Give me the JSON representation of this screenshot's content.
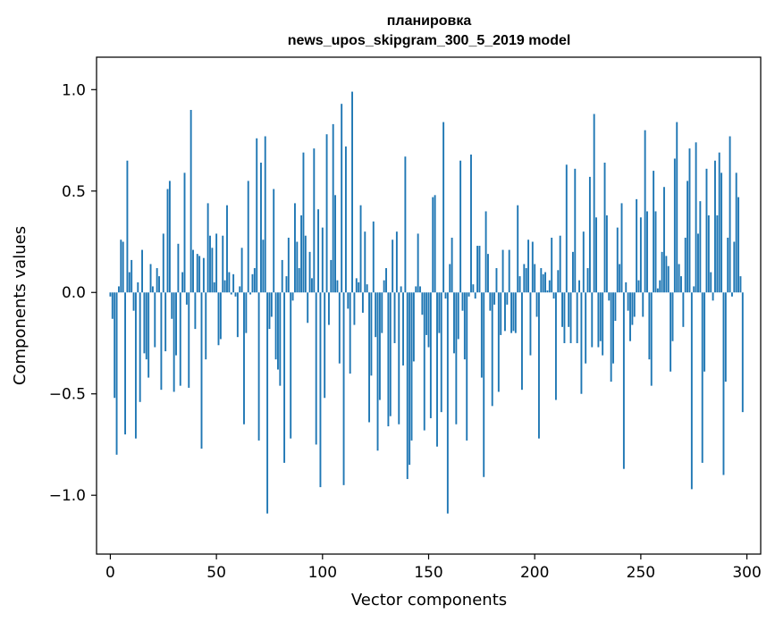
{
  "chart_data": {
    "type": "bar",
    "title_lines": [
      "планировка",
      "news_upos_skipgram_300_5_2019 model"
    ],
    "xlabel": "Vector components",
    "ylabel": "Components values",
    "xlim": [
      -6.5,
      306.5
    ],
    "ylim": [
      -1.29,
      1.16
    ],
    "xticks": [
      0,
      50,
      100,
      150,
      200,
      250,
      300
    ],
    "xtick_labels": [
      "0",
      "50",
      "100",
      "150",
      "200",
      "250",
      "300"
    ],
    "yticks": [
      -1.0,
      -0.5,
      0.0,
      0.5,
      1.0
    ],
    "ytick_labels": [
      "−1.0",
      "−0.5",
      "0.0",
      "0.5",
      "1.0"
    ],
    "bar_color": "#1f77b4",
    "grid": false,
    "values": [
      -0.02,
      -0.13,
      -0.52,
      -0.8,
      0.03,
      0.26,
      0.25,
      -0.7,
      0.65,
      0.1,
      0.16,
      -0.09,
      -0.72,
      0.05,
      -0.54,
      0.21,
      -0.3,
      -0.33,
      -0.42,
      0.14,
      0.03,
      -0.27,
      0.12,
      0.08,
      -0.48,
      0.29,
      -0.29,
      0.51,
      0.55,
      -0.13,
      -0.49,
      -0.31,
      0.24,
      -0.46,
      0.1,
      0.59,
      -0.06,
      -0.47,
      0.9,
      0.21,
      -0.18,
      0.19,
      0.18,
      -0.77,
      0.17,
      -0.33,
      0.44,
      0.28,
      0.22,
      0.05,
      0.29,
      -0.26,
      -0.23,
      0.28,
      0.06,
      0.43,
      0.1,
      -0.01,
      0.09,
      -0.02,
      -0.22,
      0.03,
      0.22,
      -0.65,
      -0.2,
      0.55,
      -0.01,
      0.09,
      0.12,
      0.76,
      -0.73,
      0.64,
      0.26,
      0.77,
      -1.09,
      -0.18,
      -0.12,
      0.51,
      -0.33,
      -0.38,
      -0.46,
      0.16,
      -0.84,
      0.08,
      0.27,
      -0.72,
      -0.04,
      0.44,
      0.25,
      0.12,
      0.38,
      0.69,
      0.28,
      -0.15,
      0.2,
      0.07,
      0.71,
      -0.75,
      0.41,
      -0.96,
      0.32,
      -0.52,
      0.78,
      -0.16,
      0.16,
      0.83,
      0.48,
      0.06,
      -0.35,
      0.93,
      -0.95,
      0.72,
      -0.08,
      -0.4,
      0.99,
      -0.16,
      0.07,
      0.05,
      0.43,
      -0.1,
      0.3,
      0.04,
      -0.64,
      -0.41,
      0.35,
      -0.22,
      -0.78,
      -0.53,
      -0.2,
      0.06,
      0.12,
      -0.66,
      -0.61,
      0.26,
      -0.25,
      0.3,
      -0.65,
      0.03,
      -0.36,
      0.67,
      -0.92,
      -0.85,
      -0.73,
      -0.34,
      0.03,
      0.29,
      0.03,
      -0.11,
      -0.68,
      -0.21,
      -0.27,
      -0.62,
      0.47,
      0.48,
      -0.76,
      -0.2,
      -0.59,
      0.84,
      -0.03,
      -1.09,
      0.14,
      0.27,
      -0.3,
      -0.65,
      -0.23,
      0.65,
      -0.09,
      -0.33,
      -0.73,
      -0.02,
      0.68,
      0.04,
      -0.03,
      0.23,
      0.23,
      -0.42,
      -0.91,
      0.4,
      0.19,
      -0.09,
      -0.56,
      -0.06,
      0.12,
      -0.49,
      -0.21,
      0.21,
      -0.19,
      -0.06,
      0.21,
      -0.2,
      -0.19,
      -0.2,
      0.43,
      0.08,
      -0.48,
      0.14,
      0.12,
      0.26,
      -0.31,
      0.25,
      0.14,
      -0.12,
      -0.72,
      0.12,
      0.09,
      0.1,
      0.01,
      0.06,
      0.27,
      -0.03,
      -0.53,
      0.11,
      0.28,
      -0.17,
      -0.25,
      0.63,
      -0.17,
      -0.25,
      0.2,
      0.61,
      -0.25,
      0.06,
      -0.5,
      0.3,
      -0.35,
      0.12,
      0.57,
      -0.27,
      0.88,
      0.37,
      -0.27,
      -0.24,
      -0.31,
      0.64,
      0.38,
      -0.04,
      -0.44,
      -0.35,
      -0.14,
      0.32,
      0.14,
      0.44,
      -0.87,
      0.05,
      -0.09,
      -0.24,
      -0.16,
      -0.12,
      0.46,
      0.06,
      0.37,
      -0.12,
      0.8,
      0.4,
      -0.33,
      -0.46,
      0.6,
      0.4,
      0.02,
      0.06,
      0.2,
      0.52,
      0.18,
      0.13,
      -0.39,
      -0.24,
      0.66,
      0.84,
      0.14,
      0.08,
      -0.17,
      0.27,
      0.55,
      0.71,
      -0.97,
      0.03,
      0.74,
      0.29,
      0.45,
      -0.84,
      -0.39,
      0.61,
      0.38,
      0.1,
      -0.04,
      0.65,
      0.38,
      0.69,
      0.59,
      -0.9,
      -0.44,
      0.27,
      0.77,
      -0.02,
      0.25,
      0.59,
      0.47,
      0.08,
      -0.59
    ]
  }
}
